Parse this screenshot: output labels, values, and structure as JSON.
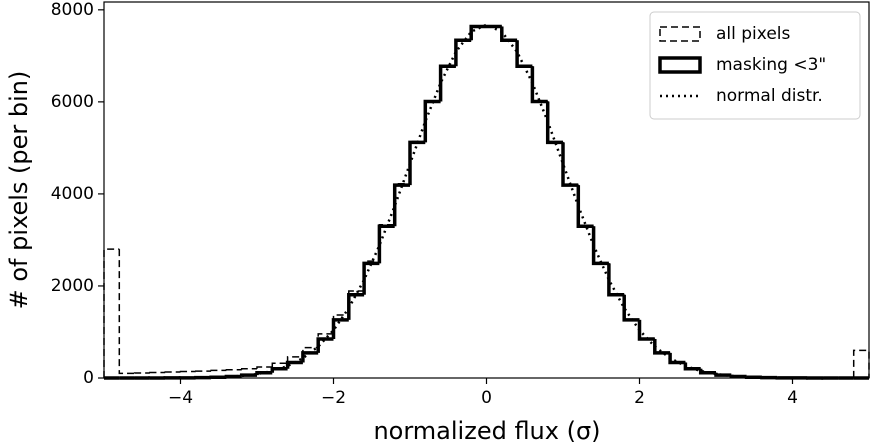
{
  "chart_data": {
    "type": "histogram",
    "xlabel": "normalized flux (σ)",
    "ylabel": "# of pixels (per bin)",
    "xlim": [
      -5,
      5
    ],
    "ylim": [
      0,
      8170
    ],
    "xticks": [
      {
        "value": -4,
        "label": "−4"
      },
      {
        "value": -2,
        "label": "−2"
      },
      0,
      2,
      4
    ],
    "yticks": [
      0,
      2000,
      4000,
      6000,
      8000
    ],
    "legend": "upper right",
    "bins": [
      -5,
      -4.8,
      -4.6,
      -4.4,
      -4.2,
      -4,
      -3.8,
      -3.6,
      -3.4,
      -3.2,
      -3,
      -2.8,
      -2.6,
      -2.4,
      -2.2,
      -2,
      -1.8,
      -1.6,
      -1.4,
      -1.2,
      -1,
      -0.8,
      -0.6,
      -0.4,
      -0.2,
      0,
      0.2,
      0.4,
      0.6,
      0.8,
      1,
      1.2,
      1.4,
      1.6,
      1.8,
      2,
      2.2,
      2.4,
      2.6,
      2.8,
      3,
      3.2,
      3.4,
      3.6,
      3.8,
      4,
      4.2,
      4.4,
      4.6,
      4.8,
      5
    ],
    "series": [
      {
        "name": "all pixels",
        "color": "#000000",
        "style": "dashed",
        "values": [
          2800,
          100,
          110,
          120,
          130,
          140,
          150,
          165,
          180,
          200,
          240,
          320,
          460,
          660,
          960,
          1370,
          1890,
          2540,
          3330,
          4220,
          5140,
          6020,
          6780,
          7340,
          7640,
          7640,
          7340,
          6780,
          6020,
          5130,
          4200,
          3300,
          2500,
          1815,
          1265,
          850,
          548,
          340,
          203,
          117,
          65,
          35,
          19,
          10,
          6,
          4,
          3,
          2,
          2,
          600
        ]
      },
      {
        "name": "masking <3\"",
        "color": "#000000",
        "style": "solid",
        "values": [
          0,
          0,
          0,
          1,
          2,
          4,
          8,
          17,
          33,
          63,
          115,
          201,
          337,
          545,
          847,
          1262,
          1809,
          2492,
          3297,
          4192,
          5120,
          6008,
          6774,
          7338,
          7638,
          7638,
          7338,
          6774,
          6008,
          5120,
          4192,
          3297,
          2492,
          1809,
          1262,
          847,
          545,
          337,
          201,
          115,
          63,
          33,
          17,
          8,
          4,
          2,
          1,
          0,
          0,
          0
        ]
      },
      {
        "name": "normal distr.",
        "color": "#000000",
        "style": "dotted",
        "x": [
          -5,
          -4.8,
          -4.6,
          -4.4,
          -4.2,
          -4,
          -3.8,
          -3.6,
          -3.4,
          -3.2,
          -3,
          -2.8,
          -2.6,
          -2.4,
          -2.2,
          -2,
          -1.8,
          -1.6,
          -1.4,
          -1.2,
          -1,
          -0.8,
          -0.6,
          -0.4,
          -0.2,
          0,
          0.2,
          0.4,
          0.6,
          0.8,
          1,
          1.2,
          1.4,
          1.6,
          1.8,
          2,
          2.2,
          2.4,
          2.6,
          2.8,
          3,
          3.2,
          3.4,
          3.6,
          3.8,
          4,
          4.2,
          4.4,
          4.6,
          4.8,
          5
        ],
        "values": [
          0,
          0,
          0,
          0,
          1,
          3,
          6,
          12,
          24,
          46,
          85,
          152,
          261,
          431,
          683,
          1039,
          1519,
          2134,
          2881,
          3737,
          4656,
          5574,
          6412,
          7086,
          7524,
          7676,
          7524,
          7086,
          6412,
          5574,
          4656,
          3737,
          2881,
          2134,
          1519,
          1039,
          683,
          431,
          261,
          152,
          85,
          46,
          24,
          12,
          6,
          3,
          1,
          0,
          0,
          0,
          0
        ]
      }
    ]
  }
}
